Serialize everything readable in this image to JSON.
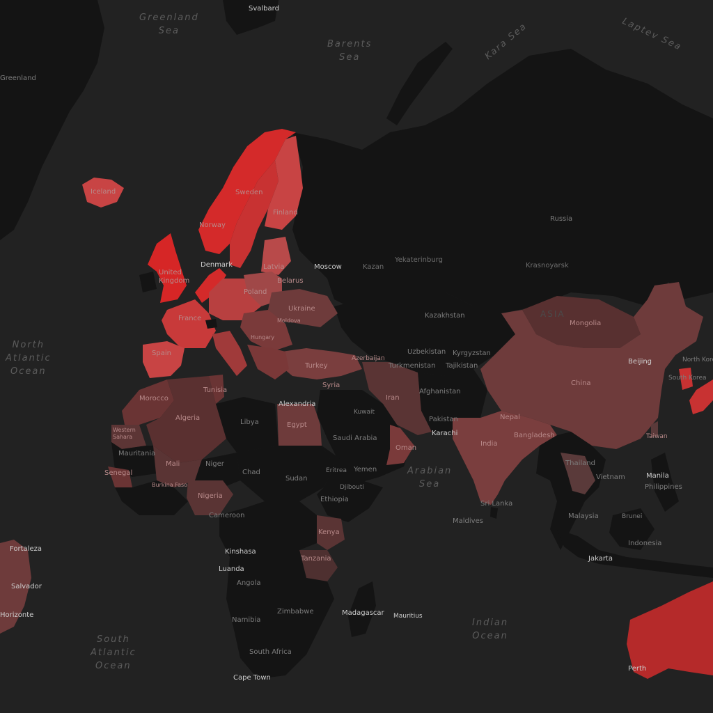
{
  "colors": {
    "ocean": "#222222",
    "no_data": "#141414",
    "low": "#5a3838",
    "medium": "#7a3e3e",
    "high": "#b53030",
    "very_high": "#d62626"
  },
  "seas": {
    "greenland_sea": [
      "Greenland",
      "Sea"
    ],
    "barents_sea": [
      "Barents",
      "Sea"
    ],
    "kara_sea": "Kara Sea",
    "laptev_sea": "Laptev Sea",
    "north_atlantic": [
      "North",
      "Atlantic",
      "Ocean"
    ],
    "south_atlantic": [
      "South",
      "Atlantic",
      "Ocean"
    ],
    "arabian_sea": [
      "Arabian",
      "Sea"
    ],
    "indian_ocean": [
      "Indian",
      "Ocean"
    ]
  },
  "regions": {
    "asia": "ASIA"
  },
  "countries": {
    "iceland": "Iceland",
    "sweden": "Sweden",
    "finland": "Finland",
    "norway": "Norway",
    "united_kingdom": [
      "United",
      "Kingdom"
    ],
    "poland": "Poland",
    "ukraine": "Ukraine",
    "france": "France",
    "spain": "Spain",
    "turkey": "Turkey",
    "russia": "Russia",
    "kazakhstan": "Kazakhstan",
    "mongolia": "Mongolia",
    "china": "China",
    "iran": "Iran",
    "afghanistan": "Afghanistan",
    "india": "India",
    "algeria": "Algeria",
    "libya": "Libya",
    "egypt": "Egypt",
    "morocco": "Morocco",
    "tunisia": "Tunisia",
    "mali": "Mali",
    "niger": "Niger",
    "chad": "Chad",
    "sudan": "Sudan",
    "nigeria": "Nigeria",
    "ethiopia": "Ethiopia",
    "kenya": "Kenya",
    "tanzania": "Tanzania",
    "angola": "Angola",
    "namibia": "Namibia",
    "zimbabwe": "Zimbabwe",
    "south_africa": "South Africa",
    "madagascar": "Madagascar",
    "saudi_arabia": "Saudi Arabia",
    "yemen": "Yemen",
    "oman": "Oman",
    "mauritania": "Mauritania",
    "senegal": "Senegal",
    "cameroon": "Cameroon",
    "djibouti": "Djibouti",
    "uzbekistan": "Uzbekistan",
    "kyrgyzstan": "Kyrgyzstan",
    "turkmenistan": "Turkmenistan",
    "tajikistan": "Tajikistan",
    "nepal": "Nepal",
    "bangladesh": "Bangladesh",
    "sri_lanka": "Sri Lanka",
    "maldives": "Maldives",
    "thailand": "Thailand",
    "vietnam": "Vietnam",
    "malaysia": "Malaysia",
    "philippines": "Philippines",
    "indonesia": "Indonesia",
    "taiwan": "Taiwan",
    "south_korea": "South Korea",
    "north_korea": "North Korea",
    "greenland": "Greenland",
    "brunei": "Brunei",
    "mauritius": "Mauritius",
    "syria": "Syria",
    "azerbaijan": "Azerbaijan",
    "pakistan": "Pakistan",
    "kuwait": "Kuwait",
    "eritrea": "Eritrea",
    "western_sahara": [
      "Western",
      "Sahara"
    ],
    "burkina_faso": "Burkina Faso",
    "moldova": "Moldova",
    "hungary": "Hungary",
    "latvia": "Latvia",
    "belarus": "Belarus"
  },
  "cities": {
    "svalbard": "Svalbard",
    "moscow": "Moscow",
    "kazan": "Kazan",
    "yekaterinburg": "Yekaterinburg",
    "krasnoyarsk": "Krasnoyarsk",
    "beijing": "Beijing",
    "alexandria": "Alexandria",
    "karachi": "Karachi",
    "manila": "Manila",
    "jakarta": "Jakarta",
    "perth": "Perth",
    "cape_town": "Cape Town",
    "luanda": "Luanda",
    "kinshasa": "Kinshasa",
    "fortaleza": "Fortaleza",
    "salvador": "Salvador",
    "belo_horizonte": "Horizonte",
    "denmark": "Denmark"
  }
}
